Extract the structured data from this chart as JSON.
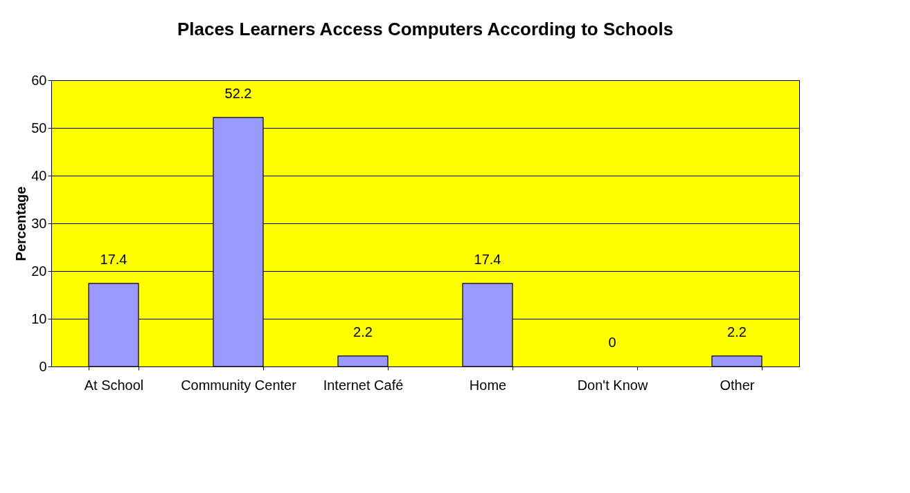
{
  "chart_data": {
    "type": "bar",
    "title": "Places Learners Access Computers According to Schools",
    "ylabel": "Percentage",
    "categories": [
      "At School",
      "Community Center",
      "Internet Café",
      "Home",
      "Don't Know",
      "Other"
    ],
    "values": [
      17.4,
      52.2,
      2.2,
      17.4,
      0,
      2.2
    ],
    "color": "#9999ff",
    "ylim": [
      0,
      60
    ],
    "yticks": [
      0,
      10,
      20,
      30,
      40,
      50,
      60
    ],
    "grid": "y",
    "data_labels": true
  }
}
